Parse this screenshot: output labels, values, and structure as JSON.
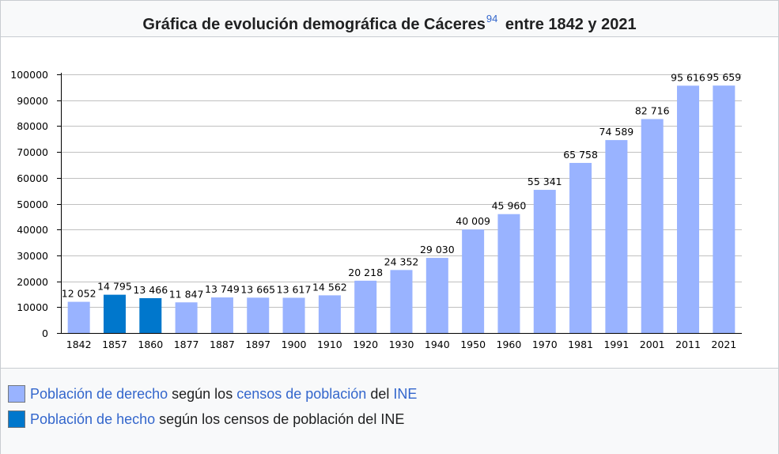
{
  "title": {
    "text": "Gráfica de evolución demográfica de Cáceres",
    "ref": "94",
    "suffix": "entre 1842 y 2021"
  },
  "chart_data": {
    "type": "bar",
    "categories": [
      "1842",
      "1857",
      "1860",
      "1877",
      "1887",
      "1897",
      "1900",
      "1910",
      "1920",
      "1930",
      "1940",
      "1950",
      "1960",
      "1970",
      "1981",
      "1991",
      "2001",
      "2011",
      "2021"
    ],
    "values": [
      12052,
      14795,
      13466,
      11847,
      13749,
      13665,
      13617,
      14562,
      20218,
      24352,
      29030,
      40009,
      45960,
      55341,
      65758,
      74589,
      82716,
      95616,
      95659
    ],
    "value_labels": [
      "12 052",
      "14 795",
      "13 466",
      "11 847",
      "13 749",
      "13 665",
      "13 617",
      "14 562",
      "20 218",
      "24 352",
      "29 030",
      "40 009",
      "45 960",
      "55 341",
      "65 758",
      "74 589",
      "82 716",
      "95 616",
      "95 659"
    ],
    "series_index": [
      0,
      1,
      1,
      0,
      0,
      0,
      0,
      0,
      0,
      0,
      0,
      0,
      0,
      0,
      0,
      0,
      0,
      0,
      0
    ],
    "series": [
      {
        "name": "Población de derecho según los censos de población del INE",
        "color": "#99b3ff"
      },
      {
        "name": "Población de hecho según los censos de población del INE",
        "color": "#0077cc"
      }
    ],
    "ylim": [
      0,
      100000
    ],
    "yticks": [
      0,
      10000,
      20000,
      30000,
      40000,
      50000,
      60000,
      70000,
      80000,
      90000,
      100000
    ],
    "grid": true,
    "xlabel": "",
    "ylabel": ""
  },
  "legend": {
    "item1": {
      "part1": "Población de derecho",
      "part2": " según los ",
      "part3": "censos de población",
      "part4": " del ",
      "part5": "INE",
      "color": "#99b3ff"
    },
    "item2": {
      "part1": "Población de hecho",
      "part2": " según los censos de población del INE",
      "color": "#0077cc"
    }
  }
}
